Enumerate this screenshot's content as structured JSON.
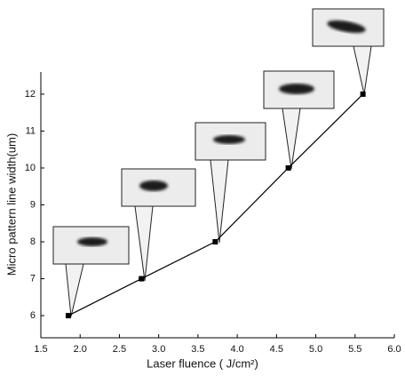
{
  "chart_data": {
    "type": "line",
    "x_label": "Laser fluence ( J/cm²)",
    "y_label": "Micro pattern line width(um)",
    "x": [
      1.85,
      2.78,
      3.72,
      4.65,
      5.6
    ],
    "values": [
      6,
      7,
      8,
      10,
      12
    ],
    "color": "#000000",
    "xlim": [
      1.5,
      6.0
    ],
    "xticks": [
      1.5,
      {
        "value": 2.0,
        "label": "2.0"
      },
      2.5,
      {
        "value": 3.0,
        "label": "3.0"
      },
      3.5,
      {
        "value": 4.0,
        "label": "4.0"
      },
      4.5,
      {
        "value": 5.0,
        "label": "5.0"
      },
      5.5,
      {
        "value": 6.0,
        "label": "6.0"
      }
    ],
    "ylim": [
      5.4,
      12.6
    ],
    "yticks": [
      6,
      7,
      8,
      9,
      10,
      11,
      12
    ]
  }
}
